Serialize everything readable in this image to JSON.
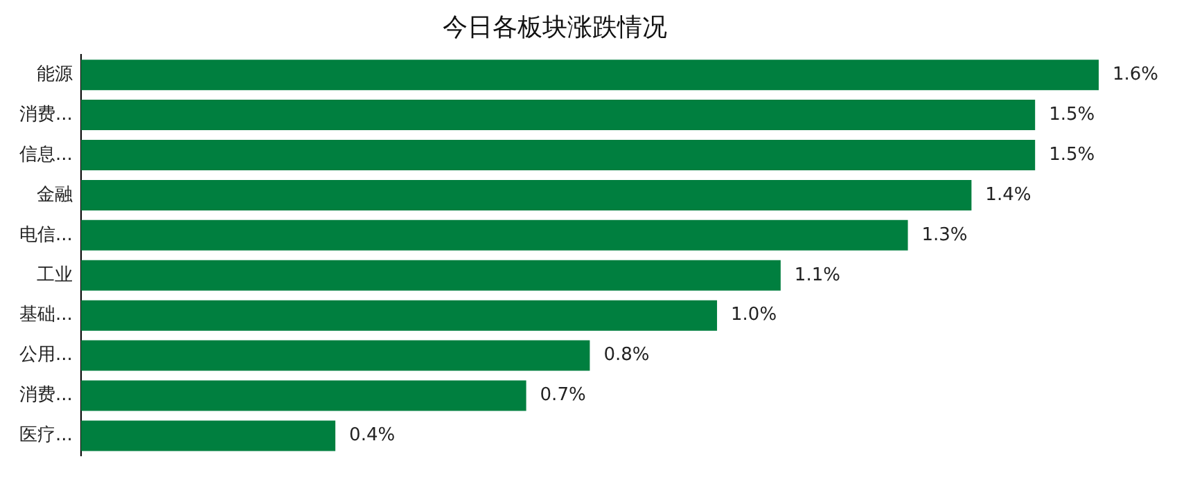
{
  "chart_data": {
    "type": "bar",
    "orientation": "horizontal",
    "title": "今日各板块涨跌情况",
    "tick_labels": "y",
    "categories": [
      "能源",
      "消费...",
      "信息...",
      "金融",
      "电信...",
      "工业",
      "基础...",
      "公用...",
      "消费...",
      "医疗..."
    ],
    "values": [
      1.6,
      1.5,
      1.5,
      1.4,
      1.3,
      1.1,
      1.0,
      0.8,
      0.7,
      0.4
    ],
    "value_labels": [
      "1.6%",
      "1.5%",
      "1.5%",
      "1.4%",
      "1.3%",
      "1.1%",
      "1.0%",
      "0.8%",
      "0.7%",
      "0.4%"
    ],
    "color": "#007f3f"
  }
}
